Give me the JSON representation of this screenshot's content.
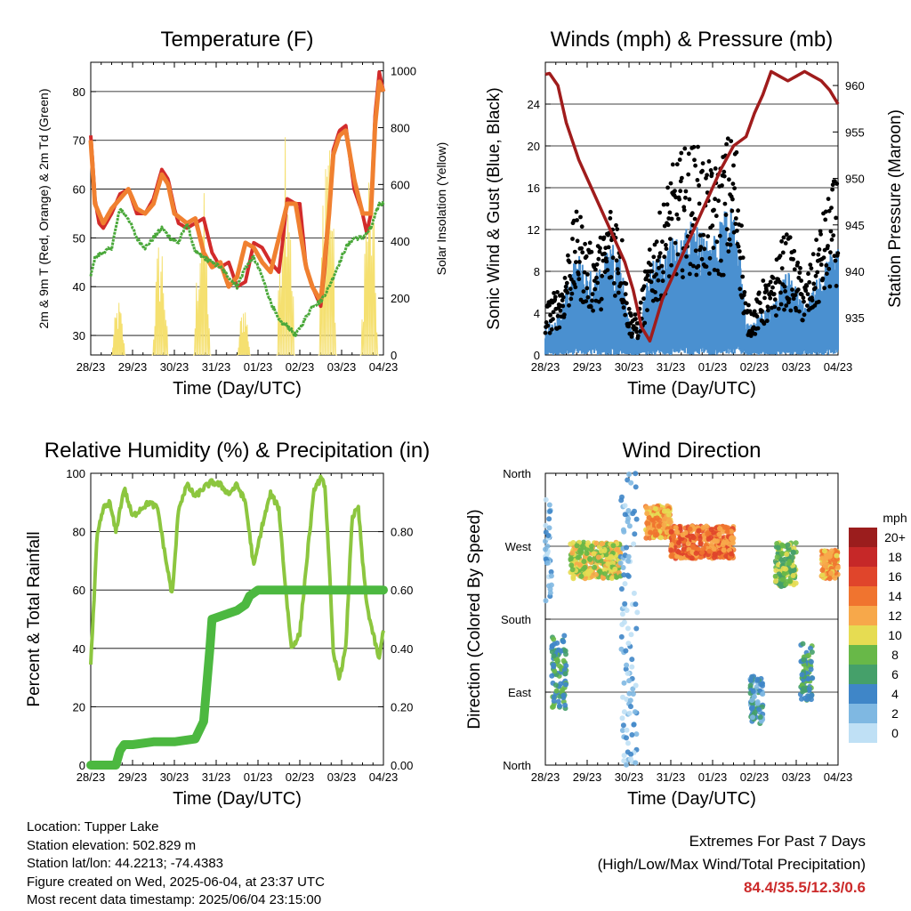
{
  "chart_data": [
    {
      "id": "temperature",
      "type": "line",
      "title": "Temperature (F)",
      "xlabel": "Time (Day/UTC)",
      "ylabel": "2m & 9m T (Red, Orange) & 2m Td (Green)",
      "ylabel_right": "Solar Insolation (Yellow)",
      "x_ticks": [
        "28/23",
        "29/23",
        "30/23",
        "31/23",
        "01/23",
        "02/23",
        "03/23",
        "04/23"
      ],
      "ylim": [
        26,
        86
      ],
      "y_ticks": [
        30,
        40,
        50,
        60,
        70,
        80
      ],
      "ylim_right": [
        0,
        1030
      ],
      "y_ticks_right": [
        0,
        200,
        400,
        600,
        800,
        1000
      ],
      "grid": true,
      "x_unit": "days since 28/23",
      "series": [
        {
          "name": "2m T",
          "color": "#d22b2b",
          "x": [
            0,
            0.05,
            0.1,
            0.2,
            0.3,
            0.5,
            0.7,
            0.9,
            1.1,
            1.3,
            1.5,
            1.7,
            1.85,
            2.0,
            2.1,
            2.3,
            2.5,
            2.7,
            2.9,
            3.1,
            3.3,
            3.5,
            3.7,
            3.9,
            4.1,
            4.3,
            4.5,
            4.6,
            4.7,
            4.9,
            5.0,
            5.15,
            5.3,
            5.5,
            5.6,
            5.7,
            5.8,
            5.95,
            6.1,
            6.3,
            6.5,
            6.6,
            6.7,
            6.8,
            6.9,
            7.0
          ],
          "y": [
            71,
            65,
            58,
            53,
            52,
            55,
            59,
            60,
            55,
            55,
            58,
            64,
            62,
            56,
            53,
            52,
            53,
            54,
            47,
            44,
            45,
            40,
            41,
            49,
            48,
            45,
            43,
            50,
            58,
            57,
            57,
            44,
            40,
            36,
            44,
            55,
            68,
            72,
            73,
            60,
            55,
            51,
            55,
            75,
            84,
            80
          ]
        },
        {
          "name": "9m T",
          "color": "#f08030",
          "x": [
            0,
            0.1,
            0.3,
            0.5,
            0.7,
            0.9,
            1.1,
            1.3,
            1.5,
            1.7,
            1.85,
            2.0,
            2.3,
            2.5,
            2.7,
            2.9,
            3.1,
            3.3,
            3.5,
            3.7,
            3.9,
            4.1,
            4.3,
            4.5,
            4.7,
            4.9,
            5.15,
            5.3,
            5.5,
            5.7,
            5.8,
            5.95,
            6.1,
            6.3,
            6.5,
            6.7,
            6.8,
            6.9,
            7.0
          ],
          "y": [
            70,
            57,
            53,
            56,
            58,
            60,
            56,
            55,
            57,
            63,
            61,
            55,
            53,
            54,
            47,
            44,
            45,
            40,
            42,
            49,
            48,
            45,
            43,
            50,
            57,
            57,
            44,
            40,
            37,
            55,
            67,
            71,
            72,
            62,
            55,
            55,
            73,
            82,
            80
          ]
        },
        {
          "name": "2m Td",
          "color": "#4aa83a",
          "x": [
            0,
            0.1,
            0.3,
            0.5,
            0.7,
            0.9,
            1.1,
            1.3,
            1.5,
            1.7,
            1.9,
            2.1,
            2.3,
            2.5,
            2.7,
            2.9,
            3.1,
            3.3,
            3.5,
            3.7,
            3.9,
            4.1,
            4.3,
            4.5,
            4.7,
            4.9,
            5.1,
            5.3,
            5.5,
            5.7,
            5.9,
            6.1,
            6.3,
            6.5,
            6.7,
            6.9,
            7.0
          ],
          "y": [
            42,
            46,
            47,
            48,
            56,
            54,
            50,
            48,
            50,
            52,
            50,
            49,
            53,
            47,
            46,
            45,
            44,
            42,
            40,
            44,
            46,
            42,
            37,
            33,
            32,
            30,
            33,
            36,
            37,
            40,
            44,
            48,
            50,
            50,
            52,
            57,
            57
          ]
        }
      ],
      "series_right": [
        {
          "name": "Solar Insolation",
          "color": "#f5e070",
          "days": [
            {
              "peak": 200,
              "width": 0.32
            },
            {
              "peak": 450,
              "width": 0.38
            },
            {
              "peak": 620,
              "width": 0.4
            },
            {
              "peak": 200,
              "width": 0.3
            },
            {
              "peak": 985,
              "width": 0.42
            },
            {
              "peak": 985,
              "width": 0.42
            },
            {
              "peak": 700,
              "width": 0.42
            },
            {
              "peak": 960,
              "width": 0.42
            }
          ]
        }
      ]
    },
    {
      "id": "winds",
      "type": "line",
      "title": "Winds (mph) & Pressure (mb)",
      "xlabel": "Time (Day/UTC)",
      "ylabel": "Sonic Wind & Gust (Blue, Black)",
      "ylabel_right": "Station Pressure (Maroon)",
      "x_ticks": [
        "28/23",
        "29/23",
        "30/23",
        "31/23",
        "01/23",
        "02/23",
        "03/23",
        "04/23"
      ],
      "ylim": [
        0,
        28
      ],
      "y_ticks": [
        0,
        4,
        8,
        12,
        16,
        20,
        24
      ],
      "ylim_right": [
        931,
        962.5
      ],
      "y_ticks_right": [
        935,
        940,
        945,
        950,
        955,
        960
      ],
      "grid": true,
      "x_unit": "days since 28/23",
      "series": [
        {
          "name": "Sonic Wind",
          "color": "#4a90d0",
          "x": [
            0,
            0.2,
            0.4,
            0.6,
            0.8,
            1.0,
            1.2,
            1.4,
            1.6,
            1.8,
            2.0,
            2.2,
            2.4,
            2.6,
            2.8,
            3.0,
            3.2,
            3.4,
            3.6,
            3.8,
            4.0,
            4.2,
            4.4,
            4.6,
            4.8,
            5.0,
            5.2,
            5.4,
            5.6,
            5.8,
            6.0,
            6.2,
            6.4,
            6.6,
            6.8,
            7.0
          ],
          "y": [
            2,
            2,
            3,
            5,
            6,
            5,
            5,
            6,
            7,
            6,
            2,
            1,
            4,
            6,
            6,
            7,
            7,
            8,
            8,
            7,
            7,
            8,
            9,
            8,
            2,
            2,
            3,
            3,
            4,
            5,
            4,
            3,
            4,
            5,
            6,
            7
          ]
        },
        {
          "name": "Sonic Gust",
          "color": "#000000",
          "x": [
            0,
            0.2,
            0.4,
            0.6,
            0.8,
            1.0,
            1.2,
            1.4,
            1.6,
            1.8,
            2.0,
            2.2,
            2.4,
            2.6,
            2.8,
            3.0,
            3.2,
            3.4,
            3.6,
            3.8,
            4.0,
            4.2,
            4.4,
            4.6,
            4.8,
            5.0,
            5.2,
            5.4,
            5.6,
            5.8,
            6.0,
            6.2,
            6.4,
            6.6,
            6.8,
            7.0
          ],
          "y": [
            4,
            5,
            6,
            10,
            12,
            9,
            9,
            10,
            13,
            11,
            4,
            3,
            7,
            10,
            12,
            15,
            16,
            17,
            17,
            16,
            15,
            16,
            18,
            17,
            4,
            4,
            6,
            6,
            9,
            10,
            8,
            6,
            8,
            11,
            13,
            15
          ]
        },
        {
          "name": "Station Pressure",
          "color": "#a01c1c",
          "axis": "right",
          "x": [
            0,
            0.1,
            0.3,
            0.5,
            0.8,
            1.0,
            1.3,
            1.6,
            1.9,
            2.1,
            2.3,
            2.5,
            2.6,
            2.8,
            3.0,
            3.3,
            3.6,
            3.9,
            4.2,
            4.5,
            4.8,
            5.0,
            5.2,
            5.4,
            5.6,
            5.8,
            6.0,
            6.2,
            6.4,
            6.6,
            6.8,
            7.0
          ],
          "y": [
            961.2,
            961.3,
            960,
            956,
            952,
            950,
            947,
            944,
            941,
            938,
            934,
            932.5,
            934,
            937,
            939,
            942,
            945,
            948,
            951,
            953.5,
            954.5,
            957,
            959,
            961.5,
            961,
            960.5,
            961,
            961.5,
            961,
            960.5,
            959.5,
            958
          ]
        }
      ]
    },
    {
      "id": "humidity",
      "type": "line",
      "title": "Relative Humidity (%) & Precipitation (in)",
      "xlabel": "Time (Day/UTC)",
      "ylabel": "Percent & Total Rainfall",
      "x_ticks": [
        "28/23",
        "29/23",
        "30/23",
        "31/23",
        "01/23",
        "02/23",
        "03/23",
        "04/23"
      ],
      "ylim": [
        0,
        100
      ],
      "y_ticks": [
        0,
        20,
        40,
        60,
        80,
        100
      ],
      "ylim_right": [
        0,
        1.0
      ],
      "y_ticks_right": [
        "0.00",
        "0.20",
        "0.40",
        "0.60",
        "0.80"
      ],
      "grid": true,
      "x_unit": "days since 28/23",
      "series": [
        {
          "name": "Relative Humidity",
          "color": "#8cc63f",
          "x": [
            0,
            0.05,
            0.15,
            0.3,
            0.45,
            0.6,
            0.8,
            1.0,
            1.2,
            1.4,
            1.6,
            1.8,
            1.95,
            2.1,
            2.3,
            2.5,
            2.7,
            2.9,
            3.1,
            3.3,
            3.5,
            3.7,
            3.9,
            4.1,
            4.3,
            4.5,
            4.65,
            4.8,
            5.0,
            5.2,
            5.35,
            5.5,
            5.6,
            5.7,
            5.8,
            5.95,
            6.1,
            6.25,
            6.4,
            6.5,
            6.6,
            6.75,
            6.9,
            7.0
          ],
          "y": [
            35,
            48,
            78,
            88,
            90,
            80,
            95,
            85,
            88,
            90,
            88,
            70,
            58,
            88,
            96,
            92,
            95,
            97,
            96,
            93,
            96,
            90,
            68,
            82,
            93,
            88,
            62,
            40,
            45,
            75,
            95,
            98,
            96,
            70,
            38,
            30,
            40,
            85,
            88,
            70,
            55,
            45,
            36,
            47
          ]
        },
        {
          "name": "Total Precipitation",
          "color": "#4cb840",
          "axis": "right",
          "x": [
            0,
            0.6,
            0.7,
            0.8,
            1.0,
            1.5,
            2.0,
            2.5,
            2.7,
            2.85,
            2.9,
            3.1,
            3.3,
            3.5,
            3.7,
            3.8,
            4.0,
            4.2,
            7.0
          ],
          "y": [
            0,
            0,
            0.05,
            0.07,
            0.07,
            0.08,
            0.08,
            0.09,
            0.15,
            0.4,
            0.5,
            0.51,
            0.52,
            0.53,
            0.55,
            0.58,
            0.6,
            0.6,
            0.6
          ]
        }
      ]
    },
    {
      "id": "wind-direction",
      "type": "scatter",
      "title": "Wind Direction",
      "xlabel": "Time (Day/UTC)",
      "ylabel": "Direction (Colored By Speed)",
      "x_ticks": [
        "28/23",
        "29/23",
        "30/23",
        "31/23",
        "01/23",
        "02/23",
        "03/23",
        "04/23"
      ],
      "y_ticks": [
        "North",
        "East",
        "South",
        "West",
        "North"
      ],
      "ylim": [
        0,
        360
      ],
      "grid": true,
      "x_unit": "days since 28/23",
      "colorbar": {
        "title": "mph",
        "labels": [
          "20+",
          "18",
          "16",
          "14",
          "12",
          "10",
          "8",
          "6",
          "4",
          "2",
          "0"
        ],
        "colors": [
          "#9b1d1d",
          "#c62828",
          "#e0452b",
          "#f0742f",
          "#f7a84a",
          "#e6dc52",
          "#68b848",
          "#45a06a",
          "#3f86c8",
          "#7fb8e2",
          "#bfe0f5"
        ]
      },
      "points_desc": "direction clusters",
      "clusters": [
        {
          "x0": 0.0,
          "x1": 0.15,
          "dir0": 200,
          "dir1": 330,
          "speed": 1
        },
        {
          "x0": 0.15,
          "x1": 0.5,
          "dir0": 70,
          "dir1": 160,
          "speed": 3
        },
        {
          "x0": 0.6,
          "x1": 1.8,
          "dir0": 230,
          "dir1": 275,
          "speed": 5
        },
        {
          "x0": 1.8,
          "x1": 2.2,
          "dir0": 0,
          "dir1": 360,
          "speed": 1
        },
        {
          "x0": 2.4,
          "x1": 3.0,
          "dir0": 280,
          "dir1": 320,
          "speed": 6
        },
        {
          "x0": 3.0,
          "x1": 4.5,
          "dir0": 255,
          "dir1": 295,
          "speed": 7
        },
        {
          "x0": 4.9,
          "x1": 5.2,
          "dir0": 50,
          "dir1": 110,
          "speed": 2
        },
        {
          "x0": 5.5,
          "x1": 6.0,
          "dir0": 220,
          "dir1": 275,
          "speed": 4
        },
        {
          "x0": 6.1,
          "x1": 6.4,
          "dir0": 80,
          "dir1": 150,
          "speed": 3
        },
        {
          "x0": 6.6,
          "x1": 7.0,
          "dir0": 230,
          "dir1": 265,
          "speed": 6
        }
      ]
    }
  ],
  "info": {
    "location": "Location: Tupper Lake",
    "elevation": "Station elevation: 502.829 m",
    "latlon": "Station lat/lon: 44.2213; -74.4383",
    "created": "Figure created on Wed, 2025-06-04, at 23:37 UTC",
    "recent": "Most recent data timestamp: 2025/06/04 23:15:00"
  },
  "extremes": {
    "heading": "Extremes For Past 7 Days",
    "subheading": "(High/Low/Max Wind/Total Precipitation)",
    "values": "84.4/35.5/12.3/0.6"
  }
}
